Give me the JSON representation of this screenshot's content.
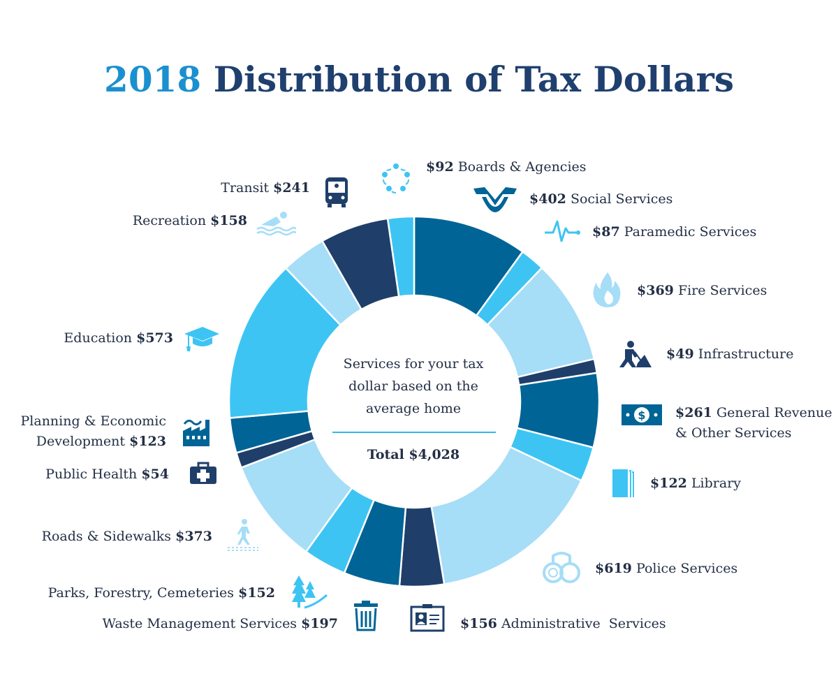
{
  "title": {
    "year": "2018",
    "rest": "Distribution of Tax Dollars"
  },
  "center": {
    "line1": "Services for your tax",
    "line2": "dollar based on the",
    "line3": "average home",
    "total": "Total $4,028"
  },
  "colors": {
    "dark_navy": "#1f3f6a",
    "mid_blue": "#006496",
    "bright_blue": "#3ec4f3",
    "light_blue": "#a6ddf7",
    "title_blue": "#1b90cf"
  },
  "chart_data": {
    "type": "pie",
    "title": "2018 Distribution of Tax Dollars",
    "total": 4028,
    "unit": "$",
    "slices": [
      {
        "name": "Social Services",
        "value": 402,
        "color": "#006496",
        "icon": "hands-heart-icon"
      },
      {
        "name": "Paramedic Services",
        "value": 87,
        "color": "#3ec4f3",
        "icon": "heartbeat-icon"
      },
      {
        "name": "Fire Services",
        "value": 369,
        "color": "#a6ddf7",
        "icon": "flame-icon"
      },
      {
        "name": "Infrastructure",
        "value": 49,
        "color": "#1f3f6a",
        "icon": "worker-shovel-icon"
      },
      {
        "name": "General Revenue & Other Services",
        "value": 261,
        "color": "#006496",
        "icon": "money-bill-icon"
      },
      {
        "name": "Library",
        "value": 122,
        "color": "#3ec4f3",
        "icon": "books-icon"
      },
      {
        "name": "Police Services",
        "value": 619,
        "color": "#a6ddf7",
        "icon": "handcuffs-icon"
      },
      {
        "name": "Administrative Services",
        "value": 156,
        "color": "#1f3f6a",
        "icon": "id-card-icon"
      },
      {
        "name": "Waste Management Services",
        "value": 197,
        "color": "#006496",
        "icon": "trash-bin-icon"
      },
      {
        "name": "Parks, Forestry, Cemeteries",
        "value": 152,
        "color": "#3ec4f3",
        "icon": "trees-icon"
      },
      {
        "name": "Roads & Sidewalks",
        "value": 373,
        "color": "#a6ddf7",
        "icon": "pedestrian-icon"
      },
      {
        "name": "Public Health",
        "value": 54,
        "color": "#1f3f6a",
        "icon": "first-aid-kit-icon"
      },
      {
        "name": "Planning & Economic Development",
        "value": 123,
        "color": "#006496",
        "icon": "factory-icon"
      },
      {
        "name": "Education",
        "value": 573,
        "color": "#3ec4f3",
        "icon": "graduation-cap-icon"
      },
      {
        "name": "Recreation",
        "value": 158,
        "color": "#a6ddf7",
        "icon": "swimmer-icon"
      },
      {
        "name": "Transit",
        "value": 241,
        "color": "#1f3f6a",
        "icon": "bus-icon"
      },
      {
        "name": "Boards & Agencies",
        "value": 92,
        "color": "#3ec4f3",
        "icon": "people-circle-icon"
      }
    ]
  },
  "labels": {
    "social": {
      "amount": "$402",
      "name": "Social Services"
    },
    "paramedic": {
      "amount": "$87",
      "name": "Paramedic Services"
    },
    "fire": {
      "amount": "$369",
      "name": "Fire Services"
    },
    "infra": {
      "amount": "$49",
      "name": "Infrastructure"
    },
    "general": {
      "amount": "$261",
      "name1": "General Revenue",
      "name2": "& Other Services"
    },
    "library": {
      "amount": "$122",
      "name": "Library"
    },
    "police": {
      "amount": "$619",
      "name": "Police Services"
    },
    "admin": {
      "amount": "$156",
      "name": "Administrative  Services"
    },
    "waste": {
      "name": "Waste Management Services",
      "amount": "$197"
    },
    "parks": {
      "name": "Parks, Forestry, Cemeteries",
      "amount": "$152"
    },
    "roads": {
      "name": "Roads & Sidewalks",
      "amount": "$373"
    },
    "health": {
      "name": "Public Health",
      "amount": "$54"
    },
    "planning": {
      "name1": "Planning & Economic",
      "name2": "Development",
      "amount": "$123"
    },
    "education": {
      "name": "Education",
      "amount": "$573"
    },
    "recreation": {
      "name": "Recreation",
      "amount": "$158"
    },
    "transit": {
      "name": "Transit",
      "amount": "$241"
    },
    "boards": {
      "amount": "$92",
      "name": "Boards & Agencies"
    }
  }
}
